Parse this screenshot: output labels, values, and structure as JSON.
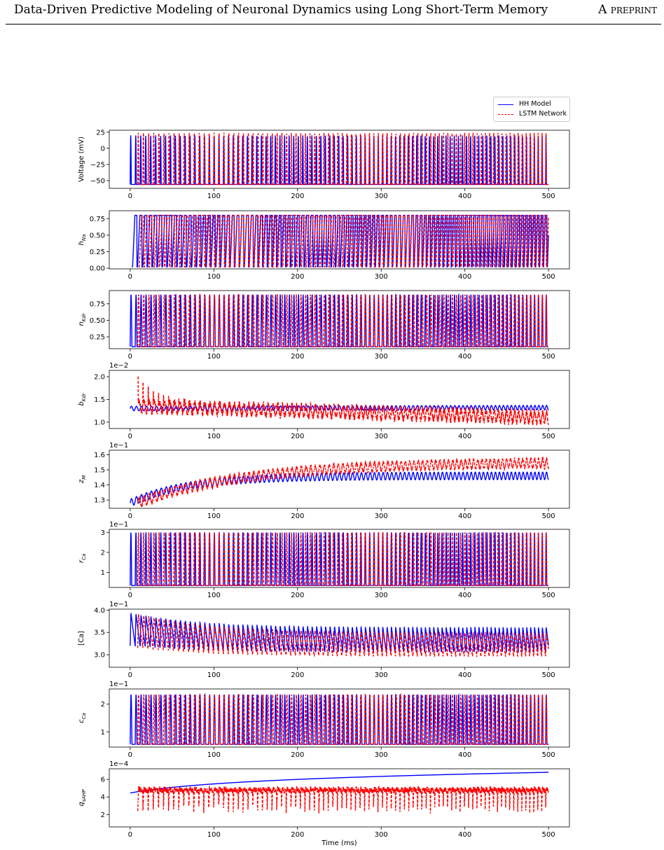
{
  "header": {
    "title": "Data-Driven Predictive Modeling of Neuronal Dynamics using Long Short-Term Memory",
    "tag": "A preprint"
  },
  "legend": {
    "items": [
      {
        "label": "HH Model",
        "color": "#0000ff",
        "style": "solid"
      },
      {
        "label": "LSTM Network",
        "color": "#ff0000",
        "style": "dashed"
      }
    ]
  },
  "colors": {
    "hh": "#0000ff",
    "lstm": "#ff0000"
  },
  "chart_data": [
    {
      "type": "line",
      "name_key": "voltage",
      "ylabel": "Voltage (mV)",
      "ylabel_main": "Voltage (mV)",
      "ylabel_sub": "",
      "xlim": [
        -25,
        525
      ],
      "ylim": [
        -62,
        28
      ],
      "yticks": [
        25,
        0,
        -25,
        -50
      ],
      "ytick_labels": [
        "25",
        "0",
        "−25",
        "−50"
      ],
      "offset_label": "",
      "xticks": [
        0,
        100,
        200,
        300,
        400,
        500
      ],
      "xtick_labels": [
        "0",
        "100",
        "200",
        "300",
        "400",
        "500"
      ],
      "show_xlabel": false,
      "series": [
        {
          "name": "HH Model",
          "shape": "spikes",
          "min": -56,
          "max": 20,
          "period0": 6.0,
          "period1": 4.6,
          "start": 0,
          "width": 0.22
        },
        {
          "name": "LSTM Network",
          "shape": "spikes",
          "min": -56,
          "max": 24,
          "period0": 6.2,
          "period1": 4.7,
          "start": 9,
          "width": 0.22
        }
      ]
    },
    {
      "type": "line",
      "name_key": "h_na",
      "ylabel_main": "h",
      "ylabel_sub": "Na",
      "xlim": [
        -25,
        525
      ],
      "ylim": [
        -0.01,
        0.87
      ],
      "yticks": [
        0.0,
        0.25,
        0.5,
        0.75
      ],
      "ytick_labels": [
        "0.00",
        "0.25",
        "0.50",
        "0.75"
      ],
      "offset_label": "",
      "xticks": [
        0,
        100,
        200,
        300,
        400,
        500
      ],
      "xtick_labels": [
        "0",
        "100",
        "200",
        "300",
        "400",
        "500"
      ],
      "show_xlabel": false,
      "series": [
        {
          "name": "HH Model",
          "shape": "plateau",
          "min": 0.02,
          "max": 0.8,
          "period0": 6.0,
          "period1": 4.6,
          "start": 2
        },
        {
          "name": "LSTM Network",
          "shape": "plateau",
          "min": 0.02,
          "max": 0.8,
          "period0": 6.2,
          "period1": 4.7,
          "start": 10
        }
      ]
    },
    {
      "type": "line",
      "name_key": "n_kdr",
      "ylabel_main": "n",
      "ylabel_sub": "Kdr",
      "xlim": [
        -25,
        525
      ],
      "ylim": [
        0.07,
        0.95
      ],
      "yticks": [
        0.25,
        0.5,
        0.75
      ],
      "ytick_labels": [
        "0.25",
        "0.50",
        "0.75"
      ],
      "offset_label": "",
      "xticks": [
        0,
        100,
        200,
        300,
        400,
        500
      ],
      "xtick_labels": [
        "0",
        "100",
        "200",
        "300",
        "400",
        "500"
      ],
      "show_xlabel": false,
      "series": [
        {
          "name": "HH Model",
          "shape": "spikes",
          "min": 0.1,
          "max": 0.89,
          "period0": 6.0,
          "period1": 4.6,
          "start": 0,
          "width": 0.35
        },
        {
          "name": "LSTM Network",
          "shape": "spikes",
          "min": 0.1,
          "max": 0.89,
          "period0": 6.2,
          "period1": 4.7,
          "start": 9,
          "width": 0.35
        }
      ]
    },
    {
      "type": "line",
      "name_key": "b_kdr",
      "ylabel_main": "b",
      "ylabel_sub": "Kdr",
      "xlim": [
        -25,
        525
      ],
      "ylim": [
        0.86,
        2.14
      ],
      "yticks": [
        1.0,
        1.5,
        2.0
      ],
      "ytick_labels": [
        "1.0",
        "1.5",
        "2.0"
      ],
      "offset_label": "1e−2",
      "xticks": [
        0,
        100,
        200,
        300,
        400,
        500
      ],
      "xtick_labels": [
        "0",
        "100",
        "200",
        "300",
        "400",
        "500"
      ],
      "show_xlabel": false,
      "series": [
        {
          "name": "HH Model",
          "shape": "wave",
          "base0": 1.3,
          "base1": 1.32,
          "amp": 0.05,
          "period0": 6.0,
          "period1": 4.6,
          "start": 0
        },
        {
          "name": "LSTM Network",
          "shape": "noisy",
          "base0": 1.35,
          "base1": 1.1,
          "amp": 0.2,
          "spike": 2.05,
          "period0": 6.2,
          "period1": 4.7,
          "start": 9
        }
      ]
    },
    {
      "type": "line",
      "name_key": "z_m",
      "ylabel_main": "z",
      "ylabel_sub": "M",
      "xlim": [
        -25,
        525
      ],
      "ylim": [
        1.245,
        1.63
      ],
      "yticks": [
        1.3,
        1.4,
        1.5,
        1.6
      ],
      "ytick_labels": [
        "1.3",
        "1.4",
        "1.5",
        "1.6"
      ],
      "offset_label": "1e−1",
      "xticks": [
        0,
        100,
        200,
        300,
        400,
        500
      ],
      "xtick_labels": [
        "0",
        "100",
        "200",
        "300",
        "400",
        "500"
      ],
      "show_xlabel": false,
      "series": [
        {
          "name": "HH Model",
          "shape": "rise",
          "base0": 1.28,
          "base1": 1.46,
          "tau": 70,
          "amp": 0.025,
          "period0": 6.0,
          "period1": 4.6,
          "start": 0
        },
        {
          "name": "LSTM Network",
          "shape": "rise",
          "base0": 1.28,
          "base1": 1.55,
          "tau": 130,
          "amp": 0.03,
          "period0": 6.2,
          "period1": 4.7,
          "start": 9,
          "noise": 0.02
        }
      ]
    },
    {
      "type": "line",
      "name_key": "r_ca",
      "ylabel_main": "r",
      "ylabel_sub": "Ca",
      "xlim": [
        -25,
        525
      ],
      "ylim": [
        0.25,
        3.15
      ],
      "yticks": [
        1,
        2,
        3
      ],
      "ytick_labels": [
        "1",
        "2",
        "3"
      ],
      "offset_label": "1e−1",
      "xticks": [
        0,
        100,
        200,
        300,
        400,
        500
      ],
      "xtick_labels": [
        "0",
        "100",
        "200",
        "300",
        "400",
        "500"
      ],
      "show_xlabel": false,
      "series": [
        {
          "name": "HH Model",
          "shape": "spikes",
          "min": 0.35,
          "max": 3.0,
          "period0": 6.0,
          "period1": 4.6,
          "start": 0,
          "width": 0.3
        },
        {
          "name": "LSTM Network",
          "shape": "spikes",
          "min": 0.35,
          "max": 3.0,
          "period0": 6.2,
          "period1": 4.7,
          "start": 9,
          "width": 0.3
        }
      ]
    },
    {
      "type": "line",
      "name_key": "ca_conc",
      "ylabel_main": "[Ca]",
      "ylabel_sub": "",
      "xlim": [
        -25,
        525
      ],
      "ylim": [
        2.72,
        4.02
      ],
      "yticks": [
        3.0,
        3.5,
        4.0
      ],
      "ytick_labels": [
        "3.0",
        "3.5",
        "4.0"
      ],
      "offset_label": "1e−1",
      "xticks": [
        0,
        100,
        200,
        300,
        400,
        500
      ],
      "xtick_labels": [
        "0",
        "100",
        "200",
        "300",
        "400",
        "500"
      ],
      "show_xlabel": false,
      "series": [
        {
          "name": "HH Model",
          "shape": "saw",
          "hi0": 3.95,
          "hi1": 3.62,
          "lo0": 3.2,
          "lo1": 3.05,
          "tau": 80,
          "period0": 6.0,
          "period1": 4.6,
          "start": 0
        },
        {
          "name": "LSTM Network",
          "shape": "saw",
          "hi0": 3.92,
          "hi1": 3.5,
          "lo0": 3.15,
          "lo1": 2.95,
          "tau": 90,
          "period0": 6.2,
          "period1": 4.7,
          "start": 9
        }
      ]
    },
    {
      "type": "line",
      "name_key": "c_ca",
      "ylabel_main": "c",
      "ylabel_sub": "Ca",
      "xlim": [
        -25,
        525
      ],
      "ylim": [
        0.45,
        2.55
      ],
      "yticks": [
        1,
        2
      ],
      "ytick_labels": [
        "1",
        "2"
      ],
      "offset_label": "1e−1",
      "xticks": [
        0,
        100,
        200,
        300,
        400,
        500
      ],
      "xtick_labels": [
        "0",
        "100",
        "200",
        "300",
        "400",
        "500"
      ],
      "show_xlabel": false,
      "series": [
        {
          "name": "HH Model",
          "shape": "spikes",
          "min": 0.55,
          "max": 2.35,
          "period0": 6.0,
          "period1": 4.6,
          "start": 0,
          "width": 0.35
        },
        {
          "name": "LSTM Network",
          "shape": "spikes",
          "min": 0.55,
          "max": 2.35,
          "period0": 6.2,
          "period1": 4.7,
          "start": 9,
          "width": 0.35
        }
      ]
    },
    {
      "type": "line",
      "name_key": "q_sahp",
      "ylabel_main": "q",
      "ylabel_sub": "sAHP",
      "xlim": [
        -25,
        525
      ],
      "ylim": [
        0.6,
        7.2
      ],
      "yticks": [
        2,
        4,
        6
      ],
      "ytick_labels": [
        "2",
        "4",
        "6"
      ],
      "offset_label": "1e−4",
      "xticks": [
        0,
        100,
        200,
        300,
        400,
        500
      ],
      "xtick_labels": [
        "0",
        "100",
        "200",
        "300",
        "400",
        "500"
      ],
      "show_xlabel": true,
      "xlabel": "Time (ms)",
      "series": [
        {
          "name": "HH Model",
          "shape": "log",
          "y0": 4.45,
          "y1": 6.8,
          "start": 0
        },
        {
          "name": "LSTM Network",
          "shape": "noisy_dip",
          "top": 5.0,
          "low": 2.0,
          "period0": 6.2,
          "period1": 4.7,
          "start": 9
        }
      ]
    }
  ]
}
